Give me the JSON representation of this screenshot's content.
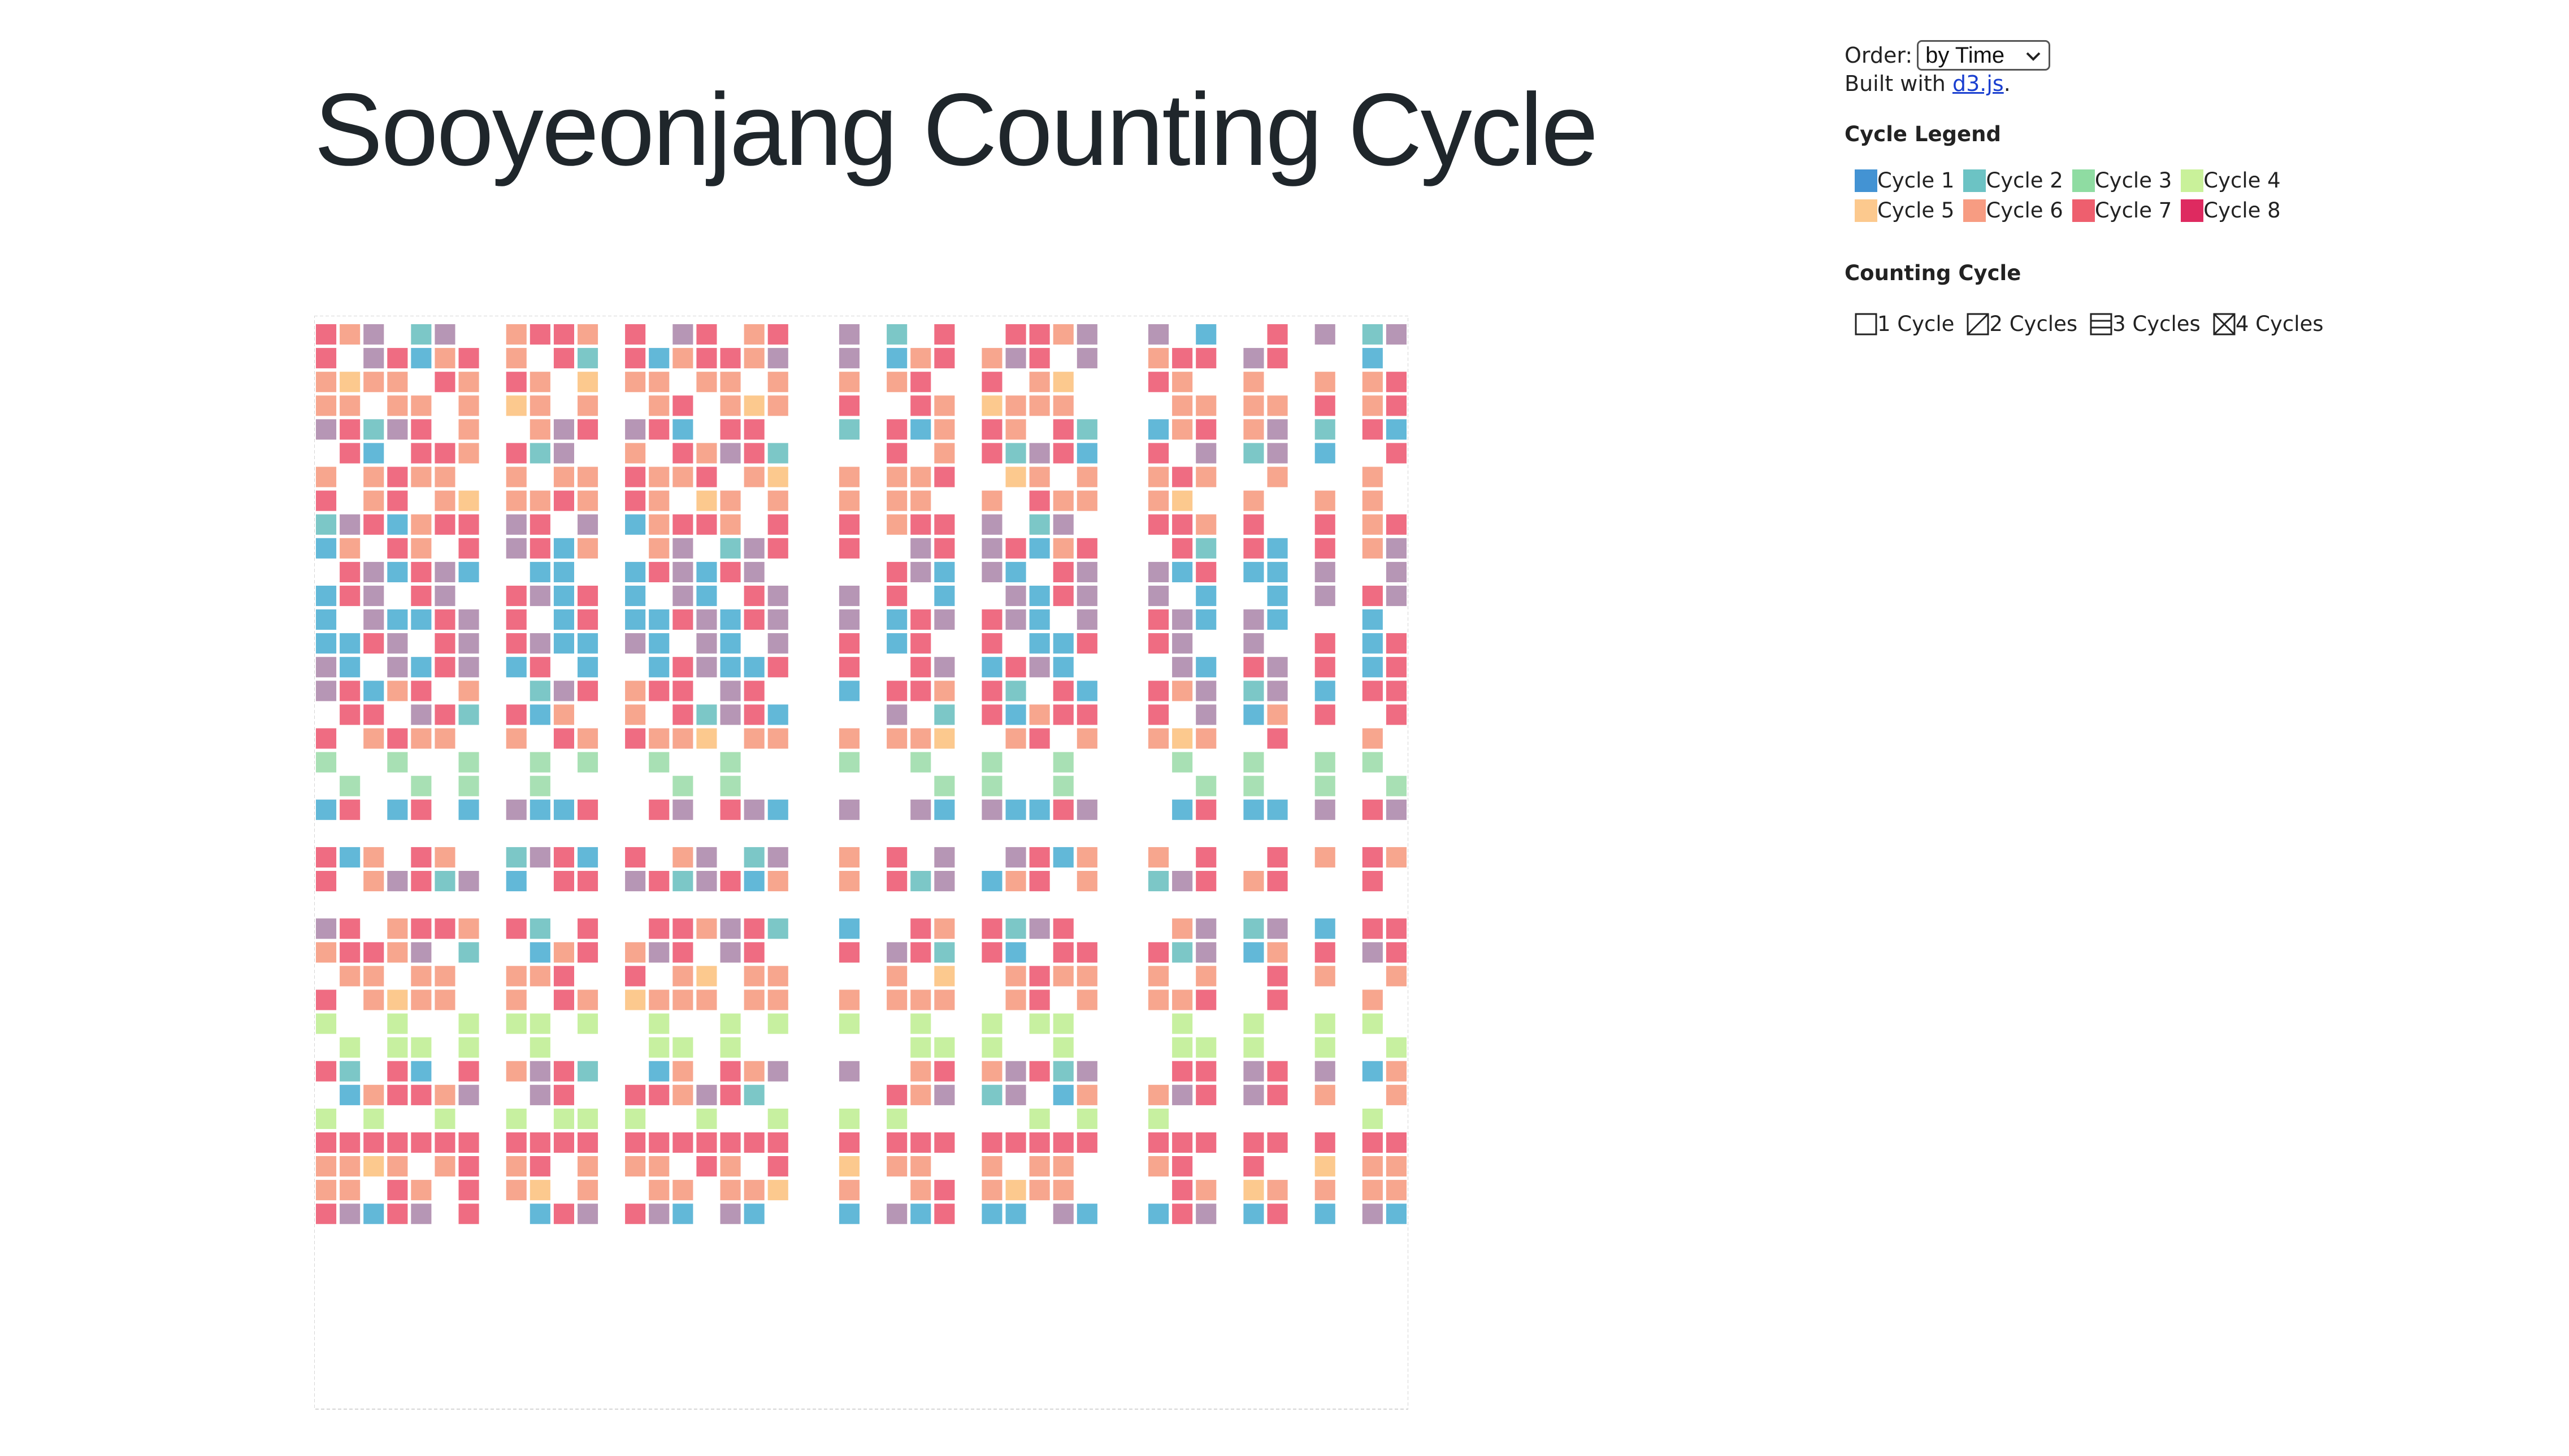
{
  "page": {
    "title": "Sooyeonjang Counting Cycle"
  },
  "controls": {
    "order_label": "Order:",
    "order_selected": "by Time",
    "built_prefix": "Built with ",
    "built_link": "d3.js",
    "built_suffix": "."
  },
  "cycle_legend": {
    "title": "Cycle Legend",
    "items": [
      {
        "label": "Cycle 1",
        "color": "#4393d3"
      },
      {
        "label": "Cycle 2",
        "color": "#6cc3c4"
      },
      {
        "label": "Cycle 3",
        "color": "#8fdca2"
      },
      {
        "label": "Cycle 4",
        "color": "#c9f19a"
      },
      {
        "label": "Cycle 5",
        "color": "#fcc98e"
      },
      {
        "label": "Cycle 6",
        "color": "#f79c82"
      },
      {
        "label": "Cycle 7",
        "color": "#ee5f6e"
      },
      {
        "label": "Cycle 8",
        "color": "#de2a60"
      }
    ]
  },
  "counting_legend": {
    "title": "Counting Cycle",
    "items": [
      {
        "label": "1 Cycle",
        "glyph": "square"
      },
      {
        "label": "2 Cycles",
        "glyph": "square-diagonal"
      },
      {
        "label": "3 Cycles",
        "glyph": "square-lines"
      },
      {
        "label": "4 Cycles",
        "glyph": "square-cross"
      }
    ]
  },
  "matrix": {
    "n": 46,
    "line_color": "#d6d6d6",
    "cell_colors": {
      "blue": "#62b8d8",
      "pink": "#ef6c82",
      "peach": "#f7a68e",
      "mauve": "#b696b5",
      "lime": "#c7f0a0",
      "green": "#a8e0b4",
      "orange": "#fcc98e",
      "teal": "#7cc7c7"
    },
    "column_groups": [
      [
        0,
        1
      ],
      [
        2
      ],
      [
        3,
        4
      ],
      [
        5,
        6
      ],
      [
        8,
        9
      ],
      [
        10,
        11
      ],
      [
        13,
        14,
        15,
        16
      ],
      [
        17
      ],
      [
        18,
        19
      ],
      [
        22
      ],
      [
        24
      ],
      [
        25,
        26
      ],
      [
        28
      ],
      [
        29
      ],
      [
        30,
        31
      ],
      [
        32
      ],
      [
        35
      ],
      [
        36,
        37
      ],
      [
        39
      ],
      [
        40
      ],
      [
        42
      ],
      [
        44
      ],
      [
        45
      ]
    ],
    "row_groups": [
      {
        "rows": [
          0,
          1
        ],
        "kind": "mixed"
      },
      {
        "rows": [
          2,
          3
        ],
        "kind": "peach"
      },
      {
        "rows": [
          4,
          5
        ],
        "kind": "mixed"
      },
      {
        "rows": [
          6,
          7
        ],
        "kind": "peach"
      },
      {
        "rows": [
          8,
          9
        ],
        "kind": "mixed"
      },
      {
        "rows": [
          10,
          11,
          12,
          13,
          14
        ],
        "kind": "blue"
      },
      {
        "rows": [
          15,
          16
        ],
        "kind": "mixed"
      },
      {
        "rows": [
          17
        ],
        "kind": "peach"
      },
      {
        "rows": [
          18,
          19
        ],
        "kind": "green"
      },
      {
        "rows": [
          20
        ],
        "kind": "blue"
      },
      {
        "rows": [
          22,
          23
        ],
        "kind": "mixed"
      },
      {
        "rows": [
          25,
          26
        ],
        "kind": "mixed"
      },
      {
        "rows": [
          27,
          28
        ],
        "kind": "peach"
      },
      {
        "rows": [
          29,
          30
        ],
        "kind": "lime"
      },
      {
        "rows": [
          31,
          32
        ],
        "kind": "mixed"
      },
      {
        "rows": [
          33
        ],
        "kind": "lime"
      },
      {
        "rows": [
          34
        ],
        "kind": "pink"
      },
      {
        "rows": [
          35,
          36
        ],
        "kind": "peach"
      },
      {
        "rows": [
          37
        ],
        "kind": "blue"
      }
    ]
  }
}
